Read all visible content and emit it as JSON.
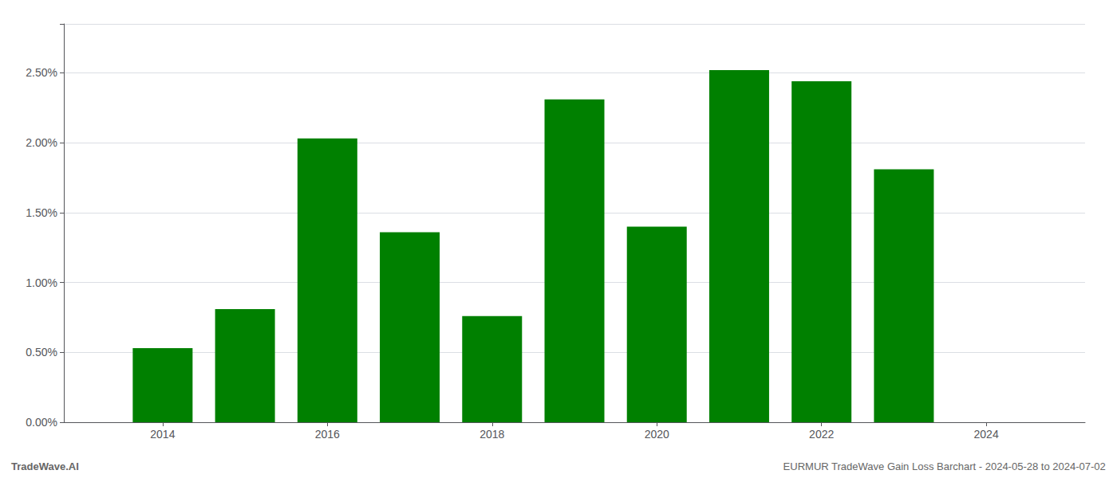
{
  "chart_data": {
    "type": "bar",
    "x": [
      2014,
      2015,
      2016,
      2017,
      2018,
      2019,
      2020,
      2021,
      2022,
      2023
    ],
    "values": [
      0.0053,
      0.0081,
      0.0203,
      0.0136,
      0.0076,
      0.0231,
      0.014,
      0.0252,
      0.0244,
      0.0181
    ],
    "color": "#008000",
    "xlim": [
      2012.8,
      2025.2
    ],
    "xticks": [
      2014,
      2016,
      2018,
      2020,
      2022,
      2024
    ],
    "ylim": [
      0,
      0.0285
    ],
    "yticks": [
      {
        "value": 0.0,
        "label": "0.00%"
      },
      {
        "value": 0.005,
        "label": "0.50%"
      },
      {
        "value": 0.01,
        "label": "1.00%"
      },
      {
        "value": 0.015,
        "label": "1.50%"
      },
      {
        "value": 0.02,
        "label": "2.00%"
      },
      {
        "value": 0.025,
        "label": "2.50%"
      }
    ],
    "grid": true,
    "annotations": [
      "TradeWave.AI",
      "EURMUR TradeWave Gain Loss Barchart - 2024-05-28 to 2024-07-02"
    ]
  }
}
